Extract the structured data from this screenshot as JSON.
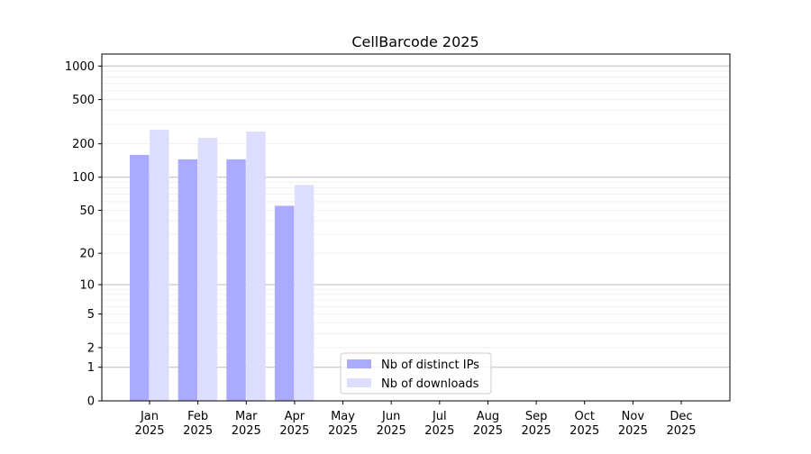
{
  "chart_data": {
    "type": "bar",
    "title": "CellBarcode 2025",
    "xlabel": "",
    "ylabel": "",
    "y_scale": "log(1+y)",
    "ylim": [
      0,
      1300
    ],
    "y_ticks": [
      0,
      1,
      2,
      5,
      10,
      20,
      50,
      100,
      200,
      500,
      1000
    ],
    "y_tick_labels": [
      "0",
      "1",
      "2",
      "5",
      "10",
      "20",
      "50",
      "100",
      "200",
      "500",
      "1000"
    ],
    "grid": true,
    "legend_position": "lower-center",
    "categories": [
      [
        "Jan",
        "2025"
      ],
      [
        "Feb",
        "2025"
      ],
      [
        "Mar",
        "2025"
      ],
      [
        "Apr",
        "2025"
      ],
      [
        "May",
        "2025"
      ],
      [
        "Jun",
        "2025"
      ],
      [
        "Jul",
        "2025"
      ],
      [
        "Aug",
        "2025"
      ],
      [
        "Sep",
        "2025"
      ],
      [
        "Oct",
        "2025"
      ],
      [
        "Nov",
        "2025"
      ],
      [
        "Dec",
        "2025"
      ]
    ],
    "series": [
      {
        "name": "Nb of distinct IPs",
        "color": "#aaaaff",
        "values": [
          159,
          145,
          145,
          55,
          null,
          null,
          null,
          null,
          null,
          null,
          null,
          null
        ]
      },
      {
        "name": "Nb of downloads",
        "color": "#ddddff",
        "values": [
          268,
          226,
          258,
          85,
          null,
          null,
          null,
          null,
          null,
          null,
          null,
          null
        ]
      }
    ]
  }
}
